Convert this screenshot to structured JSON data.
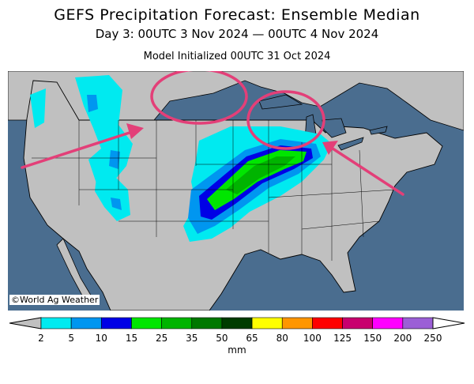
{
  "header": {
    "title": "GEFS Precipitation Forecast: Ensemble Median",
    "valid_period": "Day 3: 00UTC 3 Nov 2024 — 00UTC 4 Nov 2024",
    "init_time": "Model Initialized 00UTC 31 Oct 2024"
  },
  "map": {
    "credit": "©World Ag Weather",
    "colors": {
      "ocean": "#4a6d8f",
      "land": "#c0c0c0",
      "annotation": "#e33f78"
    }
  },
  "colorbar": {
    "unit": "mm",
    "tick_labels": [
      "2",
      "5",
      "10",
      "15",
      "25",
      "35",
      "50",
      "65",
      "80",
      "100",
      "125",
      "150",
      "200",
      "250"
    ],
    "colors": [
      "#00eaf0",
      "#0096f0",
      "#0000e6",
      "#00e600",
      "#00b400",
      "#007800",
      "#003c00",
      "#ffff00",
      "#ff9600",
      "#ff0000",
      "#c8006e",
      "#ff00ff",
      "#9b5fd6"
    ]
  }
}
